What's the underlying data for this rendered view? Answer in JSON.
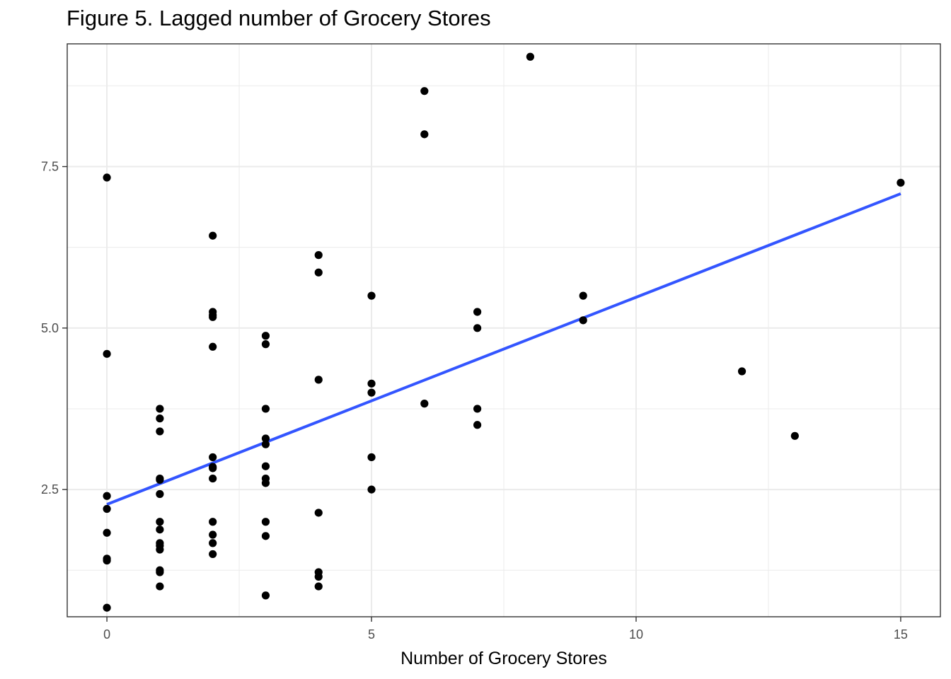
{
  "chart_data": {
    "type": "scatter",
    "title": "Figure 5. Lagged number of Grocery Stores",
    "xlabel": "Number of Grocery Stores",
    "ylabel": "",
    "xlim": [
      -0.75,
      15.75
    ],
    "ylim": [
      0.53,
      9.4
    ],
    "x_ticks": [
      0,
      5,
      10,
      15
    ],
    "x_tick_labels": [
      "0",
      "5",
      "10",
      "15"
    ],
    "y_ticks": [
      2.5,
      5.0,
      7.5
    ],
    "y_tick_labels": [
      "2.5",
      "5.0",
      "7.5"
    ],
    "grid": true,
    "legend": "none",
    "colors": {
      "points": "#000000",
      "fit_line": "#3355ff",
      "grid": "#ebebeb",
      "panel_border": "#333333"
    },
    "points": [
      {
        "x": 0,
        "y": 7.33
      },
      {
        "x": 0,
        "y": 4.6
      },
      {
        "x": 0,
        "y": 2.4
      },
      {
        "x": 0,
        "y": 2.2
      },
      {
        "x": 0,
        "y": 1.83
      },
      {
        "x": 0,
        "y": 1.43
      },
      {
        "x": 0,
        "y": 1.4
      },
      {
        "x": 0,
        "y": 0.67
      },
      {
        "x": 1,
        "y": 3.75
      },
      {
        "x": 1,
        "y": 3.6
      },
      {
        "x": 1,
        "y": 3.4
      },
      {
        "x": 1,
        "y": 2.67
      },
      {
        "x": 1,
        "y": 2.65
      },
      {
        "x": 1,
        "y": 2.43
      },
      {
        "x": 1,
        "y": 2.0
      },
      {
        "x": 1,
        "y": 1.88
      },
      {
        "x": 1,
        "y": 1.67
      },
      {
        "x": 1,
        "y": 1.63
      },
      {
        "x": 1,
        "y": 1.57
      },
      {
        "x": 1,
        "y": 1.25
      },
      {
        "x": 1,
        "y": 1.22
      },
      {
        "x": 1,
        "y": 1.0
      },
      {
        "x": 2,
        "y": 6.43
      },
      {
        "x": 2,
        "y": 5.25
      },
      {
        "x": 2,
        "y": 5.2
      },
      {
        "x": 2,
        "y": 5.17
      },
      {
        "x": 2,
        "y": 4.71
      },
      {
        "x": 2,
        "y": 3.0
      },
      {
        "x": 2,
        "y": 2.85
      },
      {
        "x": 2,
        "y": 2.83
      },
      {
        "x": 2,
        "y": 2.67
      },
      {
        "x": 2,
        "y": 2.0
      },
      {
        "x": 2,
        "y": 1.8
      },
      {
        "x": 2,
        "y": 1.67
      },
      {
        "x": 2,
        "y": 1.5
      },
      {
        "x": 3,
        "y": 4.88
      },
      {
        "x": 3,
        "y": 4.75
      },
      {
        "x": 3,
        "y": 3.75
      },
      {
        "x": 3,
        "y": 3.29
      },
      {
        "x": 3,
        "y": 3.2
      },
      {
        "x": 3,
        "y": 2.86
      },
      {
        "x": 3,
        "y": 2.67
      },
      {
        "x": 3,
        "y": 2.6
      },
      {
        "x": 3,
        "y": 2.0
      },
      {
        "x": 3,
        "y": 1.78
      },
      {
        "x": 3,
        "y": 0.86
      },
      {
        "x": 4,
        "y": 6.13
      },
      {
        "x": 4,
        "y": 5.86
      },
      {
        "x": 4,
        "y": 4.2
      },
      {
        "x": 4,
        "y": 2.14
      },
      {
        "x": 4,
        "y": 1.22
      },
      {
        "x": 4,
        "y": 1.15
      },
      {
        "x": 4,
        "y": 1.0
      },
      {
        "x": 5,
        "y": 5.5
      },
      {
        "x": 5,
        "y": 4.14
      },
      {
        "x": 5,
        "y": 4.0
      },
      {
        "x": 5,
        "y": 3.0
      },
      {
        "x": 5,
        "y": 2.5
      },
      {
        "x": 6,
        "y": 8.67
      },
      {
        "x": 6,
        "y": 8.0
      },
      {
        "x": 6,
        "y": 3.83
      },
      {
        "x": 7,
        "y": 5.25
      },
      {
        "x": 7,
        "y": 5.0
      },
      {
        "x": 7,
        "y": 3.75
      },
      {
        "x": 7,
        "y": 3.5
      },
      {
        "x": 8,
        "y": 9.2
      },
      {
        "x": 9,
        "y": 5.5
      },
      {
        "x": 9,
        "y": 5.12
      },
      {
        "x": 12,
        "y": 4.33
      },
      {
        "x": 13,
        "y": 3.33
      },
      {
        "x": 15,
        "y": 7.25
      }
    ],
    "fit_line": {
      "x": [
        0,
        15
      ],
      "y": [
        2.27,
        7.08
      ]
    }
  }
}
